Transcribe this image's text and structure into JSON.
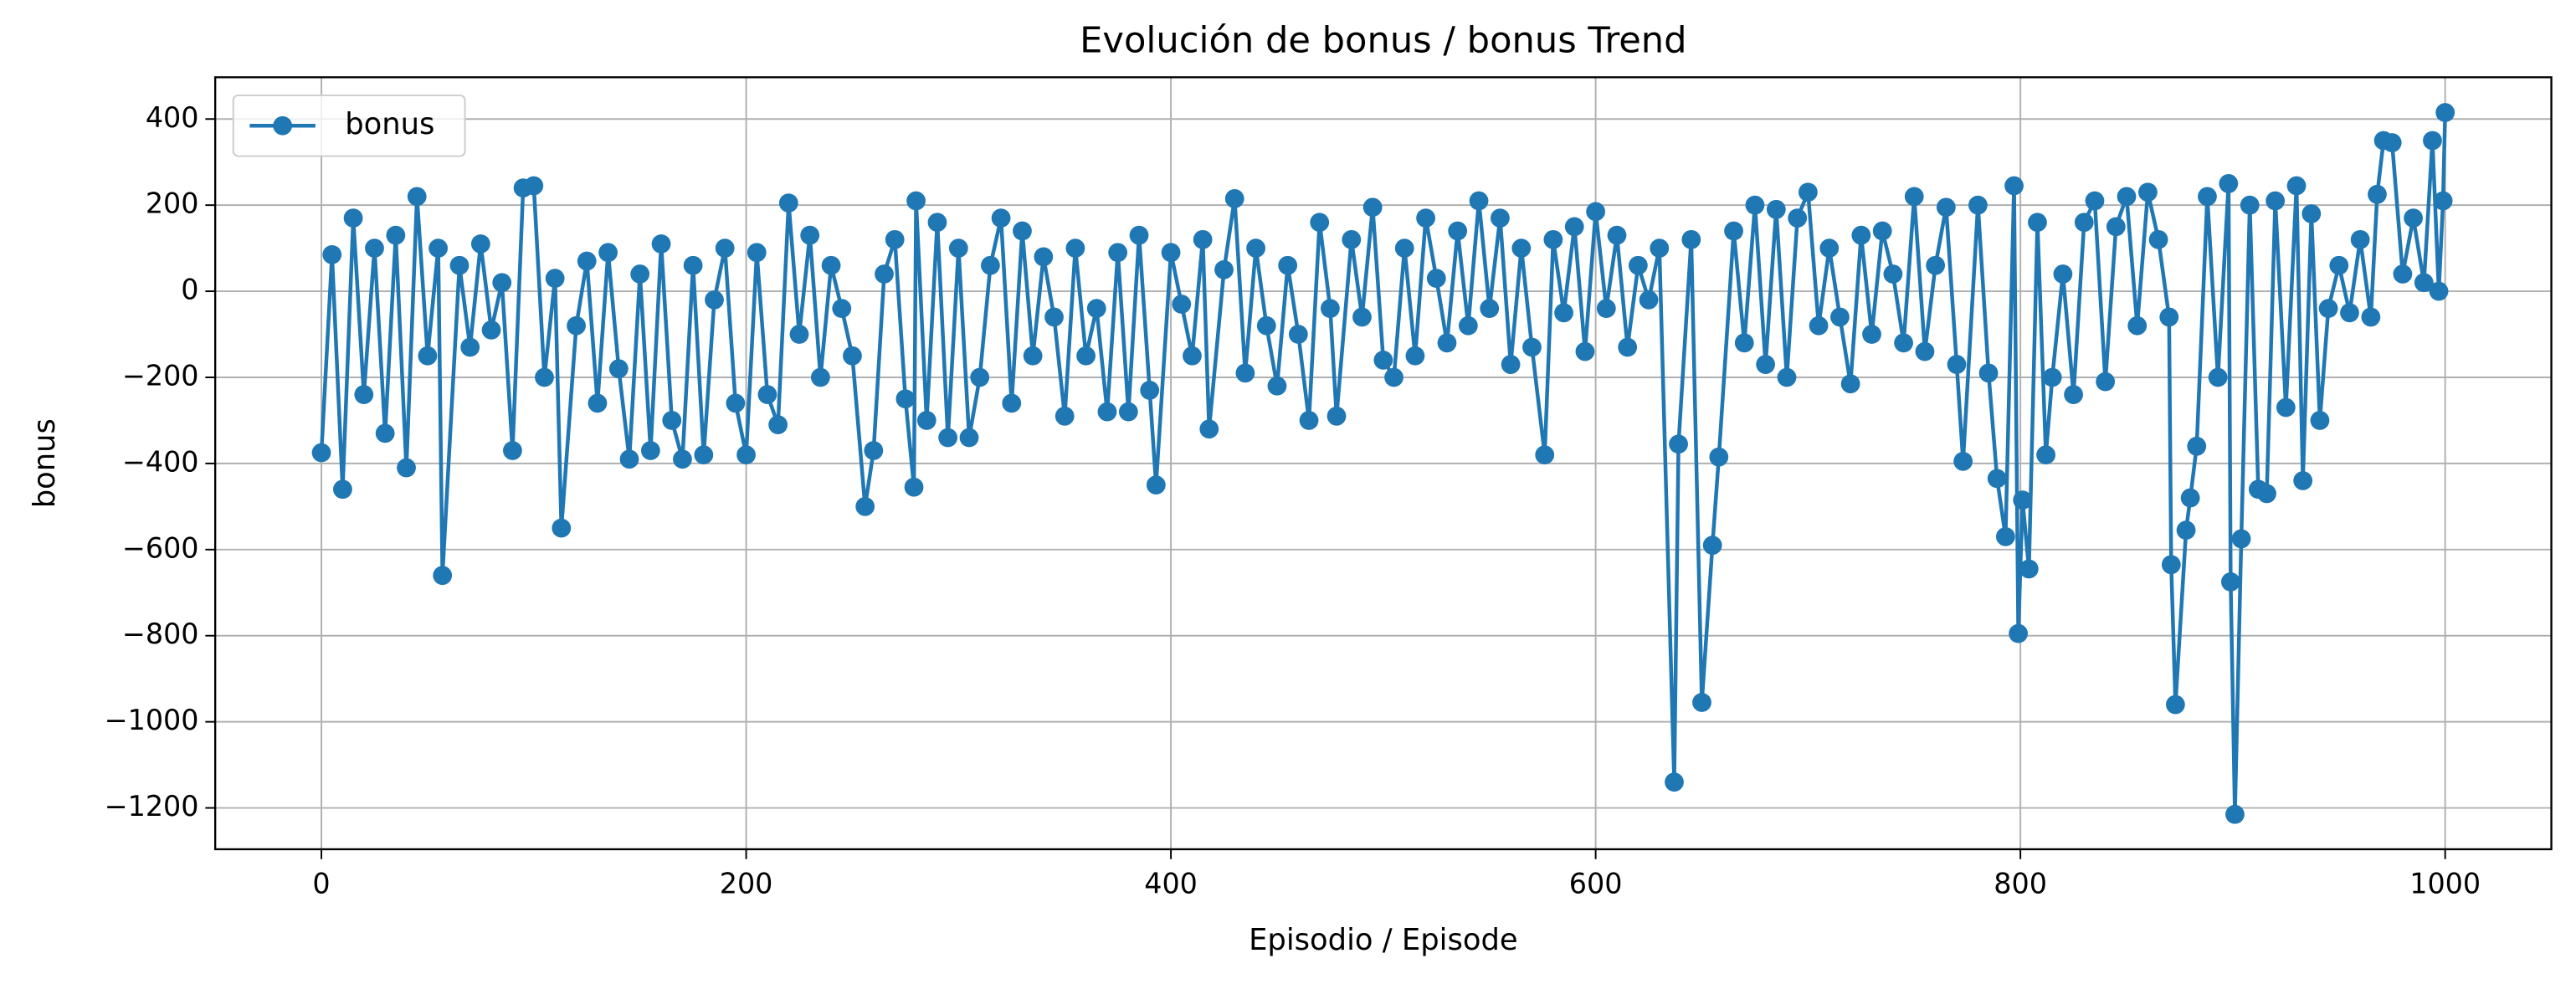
{
  "chart_data": {
    "type": "line",
    "title": "Evolución de bonus / bonus Trend",
    "x_label": "Episodio / Episode",
    "y_label": "bonus",
    "legend": "upper left",
    "grid": true,
    "xlim": [
      -50,
      1050
    ],
    "ylim": [
      -1296,
      497
    ],
    "xticks": [
      0,
      200,
      400,
      600,
      800,
      1000
    ],
    "yticks": [
      {
        "value": -1200,
        "label": "−1200"
      },
      {
        "value": -1000,
        "label": "−1000"
      },
      {
        "value": -800,
        "label": "−800"
      },
      {
        "value": -600,
        "label": "−600"
      },
      {
        "value": -400,
        "label": "−400"
      },
      {
        "value": -200,
        "label": "−200"
      },
      0,
      200,
      400
    ],
    "x": [
      0,
      5,
      10,
      15,
      20,
      25,
      30,
      35,
      40,
      45,
      50,
      55,
      57,
      65,
      70,
      75,
      80,
      85,
      90,
      95,
      100,
      105,
      110,
      113,
      120,
      125,
      130,
      135,
      140,
      145,
      150,
      155,
      160,
      165,
      170,
      175,
      180,
      185,
      190,
      195,
      200,
      205,
      210,
      215,
      220,
      225,
      230,
      235,
      240,
      245,
      250,
      256,
      260,
      265,
      270,
      275,
      279,
      280,
      285,
      290,
      295,
      300,
      305,
      310,
      315,
      320,
      325,
      330,
      335,
      340,
      345,
      350,
      355,
      360,
      365,
      370,
      375,
      380,
      385,
      390,
      393,
      400,
      405,
      410,
      415,
      418,
      425,
      430,
      435,
      440,
      445,
      450,
      455,
      460,
      465,
      470,
      475,
      478,
      485,
      490,
      495,
      500,
      505,
      510,
      515,
      520,
      525,
      530,
      535,
      540,
      545,
      550,
      555,
      560,
      565,
      570,
      576,
      580,
      585,
      590,
      595,
      600,
      605,
      610,
      615,
      620,
      625,
      630,
      637,
      639,
      645,
      650,
      655,
      658,
      665,
      670,
      675,
      680,
      685,
      690,
      695,
      700,
      705,
      710,
      715,
      720,
      725,
      730,
      735,
      740,
      745,
      750,
      755,
      760,
      765,
      770,
      773,
      780,
      785,
      789,
      793,
      797,
      799,
      801,
      804,
      808,
      812,
      815,
      820,
      825,
      830,
      835,
      840,
      845,
      850,
      855,
      860,
      865,
      870,
      871,
      873,
      878,
      880,
      883,
      888,
      893,
      898,
      899,
      901,
      904,
      908,
      912,
      916,
      920,
      925,
      930,
      933,
      937,
      941,
      945,
      950,
      955,
      960,
      965,
      968,
      971,
      975,
      980,
      985,
      990,
      994,
      997,
      999,
      1000
    ],
    "series": [
      {
        "name": "bonus",
        "color": "#1f77b4",
        "values": [
          -375,
          85,
          -460,
          170,
          -240,
          100,
          -330,
          130,
          -410,
          220,
          -150,
          100,
          -660,
          60,
          -130,
          110,
          -90,
          20,
          -370,
          240,
          245,
          -200,
          30,
          -550,
          -80,
          70,
          -260,
          90,
          -180,
          -390,
          40,
          -370,
          110,
          -300,
          -390,
          60,
          -380,
          -20,
          100,
          -260,
          -380,
          90,
          -240,
          -310,
          205,
          -100,
          130,
          -200,
          60,
          -40,
          -150,
          -500,
          -370,
          40,
          120,
          -250,
          -455,
          210,
          -300,
          160,
          -340,
          100,
          -340,
          -200,
          60,
          170,
          -260,
          140,
          -150,
          80,
          -60,
          -290,
          100,
          -150,
          -40,
          -280,
          90,
          -280,
          130,
          -230,
          -450,
          90,
          -30,
          -150,
          120,
          -320,
          50,
          215,
          -190,
          100,
          -80,
          -220,
          60,
          -100,
          -300,
          160,
          -40,
          -290,
          120,
          -60,
          195,
          -160,
          -200,
          100,
          -150,
          170,
          30,
          -120,
          140,
          -80,
          210,
          -40,
          170,
          -170,
          100,
          -130,
          -380,
          120,
          -50,
          150,
          -140,
          185,
          -40,
          130,
          -130,
          60,
          -20,
          100,
          -1140,
          -355,
          120,
          -955,
          -590,
          -385,
          140,
          -120,
          200,
          -170,
          190,
          -200,
          170,
          230,
          -80,
          100,
          -60,
          -215,
          130,
          -100,
          140,
          40,
          -120,
          220,
          -140,
          60,
          195,
          -170,
          -395,
          200,
          -190,
          -435,
          -570,
          245,
          -795,
          -485,
          -645,
          160,
          -380,
          -200,
          40,
          -240,
          160,
          210,
          -210,
          150,
          220,
          -80,
          230,
          120,
          -60,
          -635,
          -960,
          -555,
          -480,
          -360,
          220,
          -200,
          250,
          -675,
          -1215,
          -575,
          200,
          -460,
          -470,
          210,
          -270,
          245,
          -440,
          180,
          -300,
          -40,
          60,
          -50,
          120,
          -60,
          225,
          350,
          345,
          40,
          170,
          20,
          350,
          0,
          210,
          415
        ]
      }
    ]
  }
}
